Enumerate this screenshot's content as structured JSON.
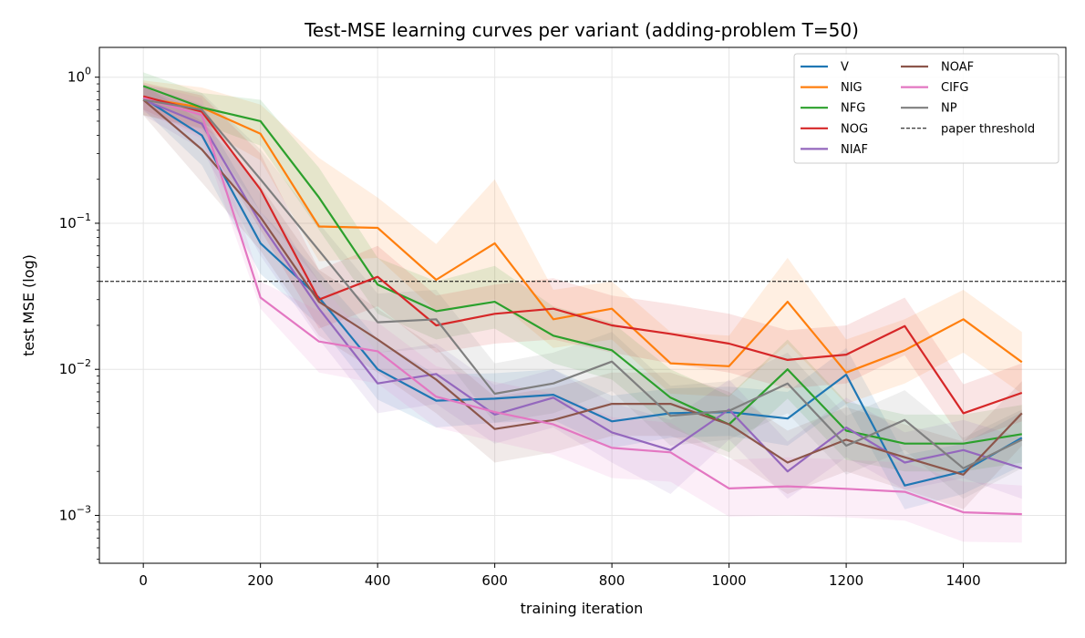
{
  "chart_data": {
    "type": "line",
    "title": "Test-MSE learning curves per variant (adding-problem T=50)",
    "xlabel": "training iteration",
    "ylabel": "test MSE (log)",
    "yscale": "log",
    "xlim": [
      -75,
      1575
    ],
    "ylim": [
      0.00047,
      1.6
    ],
    "x_ticks": [
      0,
      200,
      400,
      600,
      800,
      1000,
      1200,
      1400
    ],
    "x_tick_labels": [
      "0",
      "200",
      "400",
      "600",
      "800",
      "1000",
      "1200",
      "1400"
    ],
    "y_ticks": [
      0.001,
      0.01,
      0.1,
      1
    ],
    "y_tick_labels": [
      {
        "base": "10",
        "exp": "−3"
      },
      {
        "base": "10",
        "exp": "−2"
      },
      {
        "base": "10",
        "exp": "−1"
      },
      {
        "base": "10",
        "exp": "0"
      }
    ],
    "grid": true,
    "legend_position": "top-right",
    "x": [
      0,
      100,
      200,
      300,
      400,
      500,
      600,
      700,
      800,
      900,
      1000,
      1100,
      1200,
      1300,
      1400,
      1500
    ],
    "series": [
      {
        "name": "V",
        "color": "#1f77b4",
        "values": [
          0.72,
          0.4,
          0.073,
          0.031,
          0.01,
          0.0061,
          0.0063,
          0.0067,
          0.0044,
          0.005,
          0.0051,
          0.0046,
          0.0092,
          0.0016,
          0.002,
          0.0034
        ],
        "lower": [
          0.6,
          0.25,
          0.045,
          0.02,
          0.0062,
          0.004,
          0.0043,
          0.0045,
          0.0029,
          0.0034,
          0.0035,
          0.003,
          0.0058,
          0.0011,
          0.0014,
          0.0022
        ],
        "upper": [
          0.86,
          0.58,
          0.12,
          0.046,
          0.016,
          0.0092,
          0.0094,
          0.01,
          0.0066,
          0.0074,
          0.0076,
          0.007,
          0.014,
          0.0026,
          0.0031,
          0.0051
        ]
      },
      {
        "name": "NIG",
        "color": "#ff7f0e",
        "values": [
          0.72,
          0.62,
          0.41,
          0.095,
          0.093,
          0.041,
          0.073,
          0.022,
          0.026,
          0.011,
          0.0105,
          0.029,
          0.0095,
          0.0135,
          0.022,
          0.0112
        ],
        "lower": [
          0.55,
          0.45,
          0.27,
          0.055,
          0.058,
          0.025,
          0.03,
          0.014,
          0.016,
          0.0068,
          0.0065,
          0.015,
          0.0058,
          0.008,
          0.013,
          0.0068
        ],
        "upper": [
          0.95,
          0.85,
          0.65,
          0.28,
          0.15,
          0.072,
          0.2,
          0.035,
          0.04,
          0.018,
          0.017,
          0.058,
          0.016,
          0.022,
          0.035,
          0.018
        ]
      },
      {
        "name": "NFG",
        "color": "#2ca02c",
        "values": [
          0.87,
          0.62,
          0.5,
          0.15,
          0.038,
          0.025,
          0.029,
          0.017,
          0.0135,
          0.0064,
          0.0042,
          0.01,
          0.0038,
          0.0031,
          0.0031,
          0.0036
        ],
        "lower": [
          0.7,
          0.48,
          0.34,
          0.09,
          0.024,
          0.016,
          0.019,
          0.011,
          0.0085,
          0.004,
          0.0027,
          0.0063,
          0.0024,
          0.002,
          0.002,
          0.0023
        ],
        "upper": [
          1.08,
          0.78,
          0.7,
          0.24,
          0.058,
          0.04,
          0.051,
          0.027,
          0.021,
          0.01,
          0.0066,
          0.016,
          0.006,
          0.0049,
          0.0049,
          0.0057
        ]
      },
      {
        "name": "NOG",
        "color": "#d62728",
        "values": [
          0.74,
          0.58,
          0.17,
          0.03,
          0.043,
          0.02,
          0.024,
          0.026,
          0.02,
          0.0175,
          0.015,
          0.0116,
          0.0126,
          0.0198,
          0.005,
          0.0069
        ],
        "lower": [
          0.6,
          0.4,
          0.09,
          0.019,
          0.027,
          0.013,
          0.015,
          0.016,
          0.013,
          0.011,
          0.0095,
          0.0074,
          0.008,
          0.0125,
          0.0032,
          0.0044
        ],
        "upper": [
          0.92,
          0.75,
          0.3,
          0.048,
          0.07,
          0.032,
          0.038,
          0.042,
          0.032,
          0.028,
          0.024,
          0.0185,
          0.02,
          0.031,
          0.0079,
          0.011
        ]
      },
      {
        "name": "NIAF",
        "color": "#9467bd",
        "values": [
          0.7,
          0.48,
          0.1,
          0.026,
          0.008,
          0.0093,
          0.0049,
          0.0064,
          0.0037,
          0.0028,
          0.0053,
          0.002,
          0.004,
          0.0023,
          0.0028,
          0.0021
        ],
        "lower": [
          0.55,
          0.32,
          0.06,
          0.016,
          0.005,
          0.0058,
          0.0031,
          0.004,
          0.0023,
          0.0014,
          0.0033,
          0.0013,
          0.0025,
          0.0015,
          0.0018,
          0.0013
        ],
        "upper": [
          0.88,
          0.65,
          0.16,
          0.04,
          0.013,
          0.015,
          0.0078,
          0.01,
          0.0059,
          0.0045,
          0.0085,
          0.0032,
          0.0064,
          0.0037,
          0.0045,
          0.0034
        ]
      },
      {
        "name": "NOAF",
        "color": "#8c564b",
        "values": [
          0.7,
          0.32,
          0.11,
          0.029,
          0.016,
          0.0085,
          0.0039,
          0.0045,
          0.0058,
          0.0058,
          0.0042,
          0.0023,
          0.0033,
          0.0025,
          0.0019,
          0.005
        ],
        "lower": [
          0.55,
          0.19,
          0.065,
          0.017,
          0.0095,
          0.005,
          0.0023,
          0.0027,
          0.0035,
          0.0035,
          0.0025,
          0.0014,
          0.002,
          0.0015,
          0.0011,
          0.003
        ],
        "upper": [
          0.88,
          0.5,
          0.18,
          0.048,
          0.026,
          0.014,
          0.0065,
          0.0075,
          0.0095,
          0.0095,
          0.007,
          0.0038,
          0.0055,
          0.0042,
          0.0032,
          0.0083
        ]
      },
      {
        "name": "CIFG",
        "color": "#e377c2",
        "values": [
          0.72,
          0.55,
          0.031,
          0.0155,
          0.0133,
          0.0065,
          0.0051,
          0.0042,
          0.0029,
          0.0027,
          0.00153,
          0.00158,
          0.00152,
          0.00145,
          0.00105,
          0.00102
        ],
        "lower": [
          0.58,
          0.38,
          0.026,
          0.0095,
          0.008,
          0.004,
          0.0032,
          0.0026,
          0.0018,
          0.0017,
          0.00098,
          0.001,
          0.00097,
          0.00092,
          0.00066,
          0.00065
        ],
        "upper": [
          0.9,
          0.72,
          0.04,
          0.025,
          0.021,
          0.0105,
          0.0082,
          0.0068,
          0.0047,
          0.0043,
          0.0024,
          0.0025,
          0.0024,
          0.0023,
          0.0017,
          0.0016
        ]
      },
      {
        "name": "NP",
        "color": "#7f7f7f",
        "values": [
          0.7,
          0.6,
          0.2,
          0.065,
          0.021,
          0.022,
          0.0068,
          0.008,
          0.0113,
          0.0048,
          0.0052,
          0.008,
          0.003,
          0.0045,
          0.0021,
          0.0033
        ],
        "lower": [
          0.55,
          0.44,
          0.12,
          0.04,
          0.013,
          0.014,
          0.0043,
          0.005,
          0.0071,
          0.003,
          0.0033,
          0.005,
          0.0019,
          0.0028,
          0.0013,
          0.0021
        ],
        "upper": [
          0.88,
          0.78,
          0.32,
          0.1,
          0.033,
          0.035,
          0.011,
          0.013,
          0.018,
          0.0077,
          0.0083,
          0.013,
          0.0048,
          0.0072,
          0.0034,
          0.0053
        ]
      }
    ],
    "threshold": {
      "name": "paper threshold",
      "value": 0.04,
      "color": "#000000"
    }
  }
}
